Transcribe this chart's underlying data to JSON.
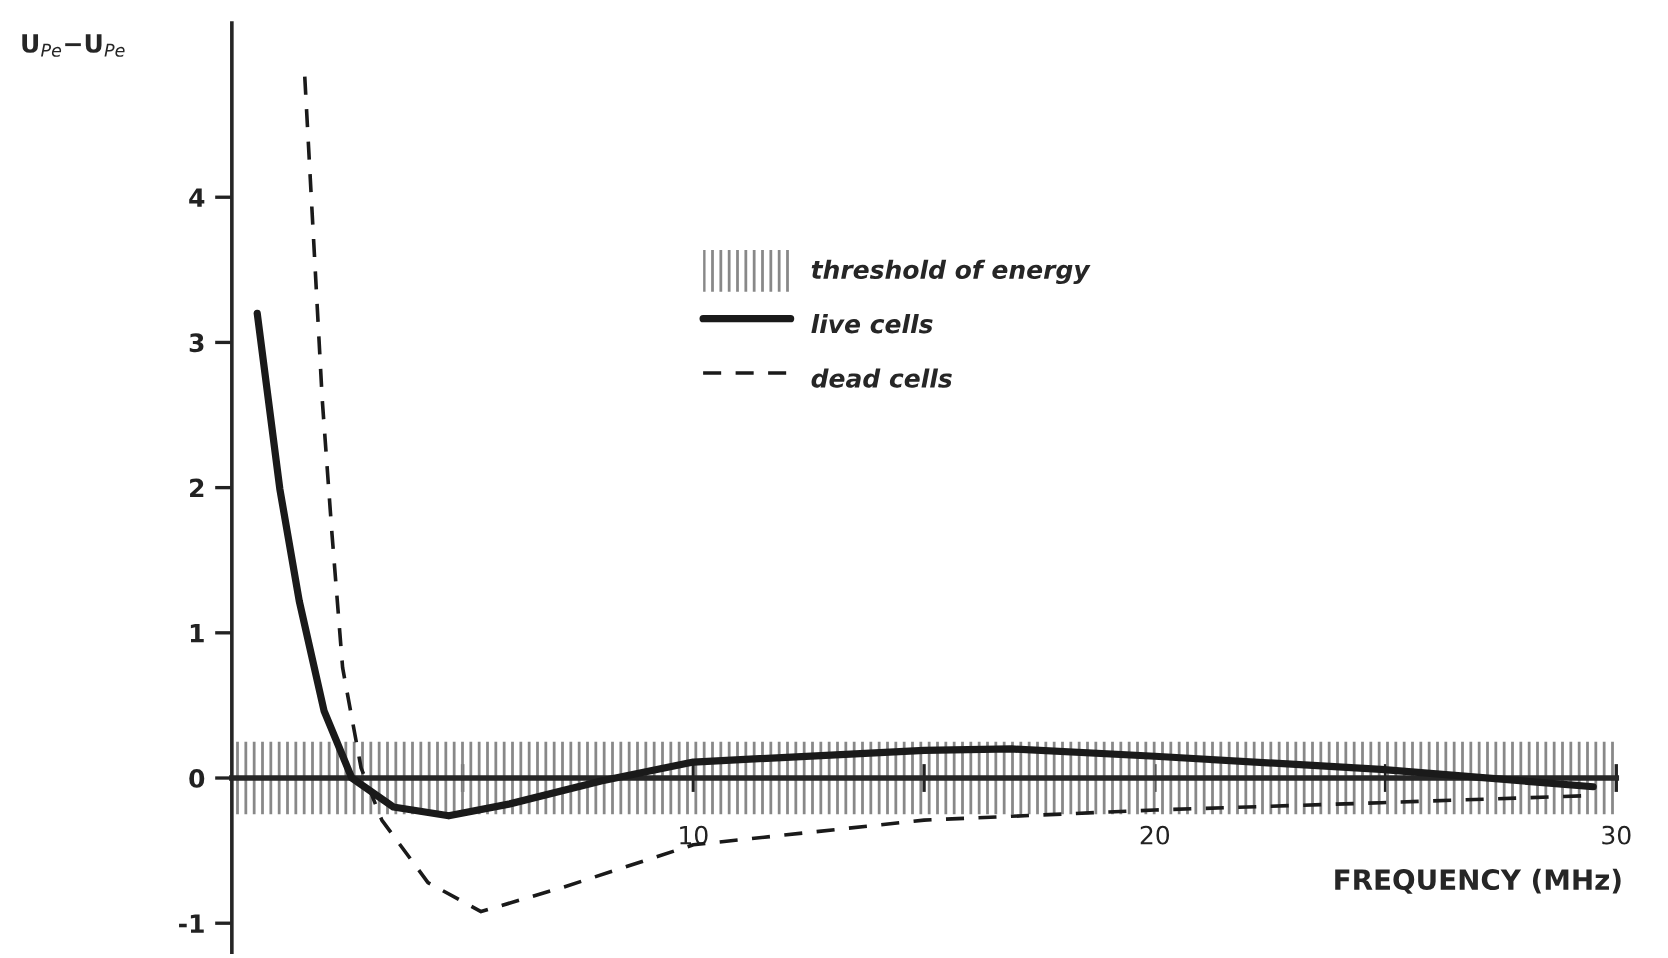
{
  "chart_data": {
    "type": "line",
    "xlabel": "FREQUENCY (MHz)",
    "ylabel": "U$_{Pe}$−U$_{Pe}$",
    "xlim": [
      0,
      30
    ],
    "ylim": [
      -1.2,
      5.2
    ],
    "xticks": [
      {
        "value": 5,
        "label": null
      },
      10,
      {
        "value": 15,
        "label": null
      },
      20,
      {
        "value": 25,
        "label": null
      },
      30
    ],
    "yticks": [
      -1,
      0,
      1,
      2,
      3,
      4
    ],
    "grid": false,
    "legend": "top",
    "marker": "none",
    "bands": [
      {
        "axis": "y",
        "from": -0.25,
        "to": 0.25,
        "label": "threshold of energy",
        "color": "#888888"
      }
    ],
    "series": [
      {
        "name": "live cells",
        "color": "#1a1a1a",
        "line_style": "solid",
        "x": [
          0.55,
          1.04,
          1.46,
          2.0,
          2.6,
          3.5,
          4.7,
          6.0,
          8.0,
          10,
          15,
          16.9,
          20,
          24.9,
          29.5
        ],
        "values": [
          3.2,
          1.99,
          1.22,
          0.46,
          0.0,
          -0.2,
          -0.26,
          -0.18,
          -0.02,
          0.11,
          0.19,
          0.2,
          0.15,
          0.06,
          -0.06
        ]
      },
      {
        "name": "dead cells",
        "color": "#1a1a1a",
        "line_style": "dashed",
        "x": [
          1.58,
          1.8,
          1.96,
          2.17,
          2.4,
          2.8,
          3.25,
          4.25,
          5.4,
          7.2,
          10,
          15,
          20,
          24.9,
          29.5
        ],
        "values": [
          4.83,
          3.54,
          2.6,
          1.68,
          0.76,
          0.07,
          -0.29,
          -0.72,
          -0.92,
          -0.75,
          -0.46,
          -0.29,
          -0.22,
          -0.17,
          -0.12
        ]
      }
    ]
  }
}
